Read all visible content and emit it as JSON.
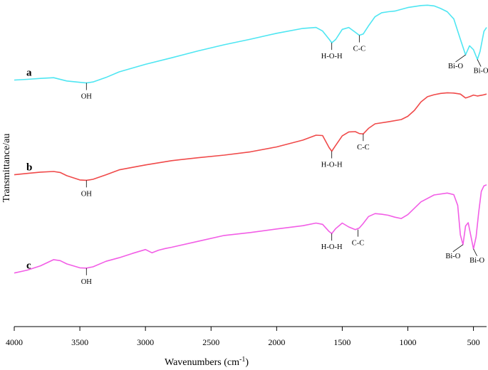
{
  "chart_data": {
    "type": "line",
    "title": "",
    "xlabel": "Wavenumbers (cm",
    "xlabel_sup": "-1",
    "xlabel_end": ")",
    "ylabel": "Transmittance/au",
    "xlim": [
      4000,
      400
    ],
    "x_reversed": true,
    "x_ticks": [
      4000,
      3500,
      3000,
      2500,
      2000,
      1500,
      1000,
      500
    ],
    "grid": false,
    "y_units": "arbitrary (offset stacked curves, 0 = bottom of plot, 100 = top)",
    "series": [
      {
        "name": "a",
        "color": "#4fe6f2",
        "x": [
          4000,
          3900,
          3800,
          3700,
          3600,
          3500,
          3450,
          3400,
          3300,
          3200,
          3000,
          2800,
          2600,
          2400,
          2200,
          2000,
          1800,
          1700,
          1650,
          1600,
          1580,
          1550,
          1500,
          1450,
          1400,
          1370,
          1340,
          1300,
          1250,
          1200,
          1150,
          1100,
          1000,
          900,
          850,
          800,
          750,
          700,
          650,
          600,
          560,
          530,
          500,
          470,
          450,
          420,
          400
        ],
        "y": [
          75.5,
          75.7,
          76.0,
          76.2,
          75.2,
          74.8,
          74.6,
          74.9,
          76.3,
          78.0,
          80.3,
          82.3,
          84.4,
          86.3,
          88.0,
          89.8,
          91.3,
          91.6,
          90.5,
          88.0,
          86.9,
          87.9,
          91.0,
          91.6,
          90.1,
          89.2,
          89.6,
          92.1,
          94.9,
          96.1,
          96.4,
          96.6,
          97.7,
          98.3,
          98.4,
          98.2,
          97.4,
          96.4,
          94.2,
          88.0,
          83.2,
          86.0,
          84.8,
          81.8,
          84.2,
          90.4,
          91.6
        ],
        "annotations": [
          {
            "label": "OH",
            "x": 3450,
            "y": 74.6
          },
          {
            "label": "H-O-H",
            "x": 1580,
            "y": 86.9
          },
          {
            "label": "C-C",
            "x": 1370,
            "y": 89.2
          },
          {
            "label": "Bi-O",
            "x": 560,
            "y": 83.2
          },
          {
            "label": "Bi-O",
            "x": 470,
            "y": 81.8
          }
        ]
      },
      {
        "name": "b",
        "color": "#f04a4a",
        "x": [
          4000,
          3900,
          3800,
          3700,
          3650,
          3600,
          3500,
          3450,
          3400,
          3300,
          3200,
          3000,
          2800,
          2600,
          2400,
          2200,
          2000,
          1800,
          1700,
          1650,
          1600,
          1580,
          1550,
          1500,
          1450,
          1400,
          1370,
          1340,
          1300,
          1250,
          1150,
          1050,
          1000,
          950,
          900,
          850,
          800,
          750,
          700,
          650,
          600,
          560,
          530,
          500,
          470,
          430,
          400
        ],
        "y": [
          46.5,
          46.9,
          47.3,
          47.5,
          47.2,
          46.2,
          44.9,
          44.8,
          45.1,
          46.5,
          48.0,
          49.5,
          50.8,
          51.7,
          52.5,
          53.5,
          55.0,
          57.1,
          58.6,
          58.5,
          54.8,
          53.7,
          55.5,
          58.4,
          59.6,
          59.7,
          59.1,
          59.0,
          60.7,
          62.1,
          62.7,
          63.4,
          64.4,
          66.2,
          68.8,
          70.4,
          71.0,
          71.4,
          71.6,
          71.5,
          71.2,
          70.0,
          70.4,
          70.9,
          70.6,
          70.9,
          71.2
        ],
        "annotations": [
          {
            "label": "OH",
            "x": 3450,
            "y": 44.8
          },
          {
            "label": "H-O-H",
            "x": 1580,
            "y": 53.7
          },
          {
            "label": "C-C",
            "x": 1340,
            "y": 59.0
          }
        ]
      },
      {
        "name": "c",
        "color": "#f25ee6",
        "x": [
          4000,
          3900,
          3800,
          3700,
          3650,
          3600,
          3500,
          3450,
          3400,
          3300,
          3200,
          3100,
          3000,
          2950,
          2900,
          2850,
          2800,
          2600,
          2400,
          2200,
          2000,
          1800,
          1700,
          1650,
          1600,
          1580,
          1550,
          1500,
          1450,
          1400,
          1370,
          1340,
          1300,
          1250,
          1200,
          1150,
          1100,
          1050,
          1000,
          900,
          800,
          700,
          650,
          620,
          600,
          580,
          560,
          540,
          520,
          500,
          480,
          460,
          440,
          420,
          400
        ],
        "y": [
          16.4,
          17.3,
          18.6,
          20.5,
          20.2,
          19.2,
          18.0,
          17.9,
          18.3,
          20.0,
          21.1,
          22.4,
          23.6,
          22.6,
          23.4,
          23.9,
          24.3,
          26.1,
          27.9,
          28.8,
          29.9,
          30.9,
          31.7,
          31.3,
          29.1,
          28.5,
          30.0,
          31.7,
          30.5,
          29.7,
          30.2,
          31.6,
          33.7,
          34.6,
          34.4,
          34.1,
          33.5,
          33.1,
          34.3,
          38.2,
          40.3,
          40.9,
          40.4,
          37.1,
          28.1,
          25.1,
          30.8,
          31.8,
          27.8,
          23.8,
          27.5,
          34.9,
          41.4,
          43.1,
          43.4
        ],
        "annotations": [
          {
            "label": "OH",
            "x": 3450,
            "y": 17.9
          },
          {
            "label": "H-O-H",
            "x": 1580,
            "y": 28.5
          },
          {
            "label": "C-C",
            "x": 1380,
            "y": 29.7
          },
          {
            "label": "Bi-O",
            "x": 580,
            "y": 25.1
          },
          {
            "label": "Bi-O",
            "x": 500,
            "y": 23.8
          }
        ]
      }
    ]
  }
}
